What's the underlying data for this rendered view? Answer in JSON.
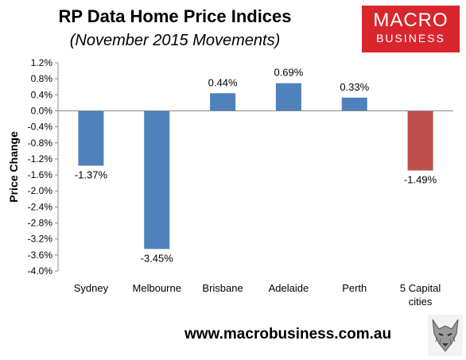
{
  "header": {
    "title": "RP Data Home Price Indices",
    "subtitle": "(November 2015 Movements)"
  },
  "logo": {
    "line1": "MACRO",
    "line2": "BUSINESS",
    "color": "#d8262c"
  },
  "footer": {
    "url": "www.macrobusiness.com.au"
  },
  "mascot": {
    "icon": "wolf-head-icon"
  },
  "chart_data": {
    "type": "bar",
    "ylabel": "Price Change",
    "xlabel": "",
    "ylim": [
      -4.0,
      1.2
    ],
    "y_ticks": [
      "1.2%",
      "0.8%",
      "0.4%",
      "0.0%",
      "-0.4%",
      "-0.8%",
      "-1.2%",
      "-1.6%",
      "-2.0%",
      "-2.4%",
      "-2.8%",
      "-3.2%",
      "-3.6%",
      "-4.0%"
    ],
    "categories": [
      "Sydney",
      "Melbourne",
      "Brisbane",
      "Adelaide",
      "Perth",
      "5 Capital cities"
    ],
    "values": [
      -1.37,
      -3.45,
      0.44,
      0.69,
      0.33,
      -1.49
    ],
    "data_labels": [
      "-1.37%",
      "-3.45%",
      "0.44%",
      "0.69%",
      "0.33%",
      "-1.49%"
    ],
    "bar_colors": [
      "#4f81bd",
      "#4f81bd",
      "#4f81bd",
      "#4f81bd",
      "#4f81bd",
      "#c0504d"
    ],
    "grid": false,
    "legend": "none"
  }
}
